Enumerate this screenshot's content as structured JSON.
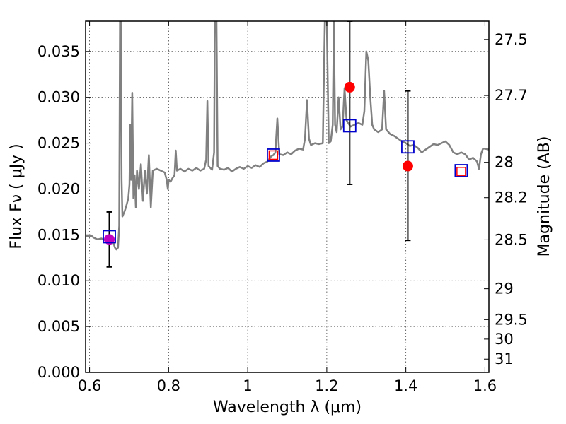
{
  "chart_data": {
    "type": "scatter",
    "xlabel": "Wavelength  λ (μm)",
    "ylabel": "Flux  Fν  ( μJy )",
    "y2label": "Magnitude (AB)",
    "xlim": [
      0.59,
      1.61
    ],
    "ylim": [
      0.0,
      0.0383
    ],
    "grid": true,
    "x_ticks": [
      {
        "value": 0.6,
        "label": "0.6"
      },
      {
        "value": 0.8,
        "label": "0.8"
      },
      {
        "value": 1.0,
        "label": "1"
      },
      {
        "value": 1.2,
        "label": "1.2"
      },
      {
        "value": 1.4,
        "label": "1.4"
      },
      {
        "value": 1.6,
        "label": "1.6"
      }
    ],
    "y_ticks": [
      {
        "value": 0.0,
        "label": "0.000"
      },
      {
        "value": 0.005,
        "label": "0.005"
      },
      {
        "value": 0.01,
        "label": "0.010"
      },
      {
        "value": 0.015,
        "label": "0.015"
      },
      {
        "value": 0.02,
        "label": "0.020"
      },
      {
        "value": 0.025,
        "label": "0.025"
      },
      {
        "value": 0.03,
        "label": "0.030"
      },
      {
        "value": 0.035,
        "label": "0.035"
      }
    ],
    "y2_ticks": [
      {
        "value": 27.5,
        "label": "27.5"
      },
      {
        "value": 27.7,
        "label": "27.7"
      },
      {
        "value": 28.0,
        "label": "28"
      },
      {
        "value": 28.2,
        "label": "28.2"
      },
      {
        "value": 28.5,
        "label": "28.5"
      },
      {
        "value": 29.0,
        "label": "29"
      },
      {
        "value": 29.5,
        "label": "29.5"
      },
      {
        "value": 30.0,
        "label": "30"
      },
      {
        "value": 31.0,
        "label": "31"
      }
    ],
    "colors": {
      "template": "#808080",
      "model": "#0000cc",
      "model_inner": "#ff0000",
      "observed": "#ff0000",
      "observed_first": "#c000c0",
      "errorbar": "#000000"
    },
    "template_spectrum": [
      [
        0.59,
        0.0149
      ],
      [
        0.605,
        0.0149
      ],
      [
        0.61,
        0.0147
      ],
      [
        0.62,
        0.0145
      ],
      [
        0.63,
        0.0146
      ],
      [
        0.64,
        0.0144
      ],
      [
        0.65,
        0.0143
      ],
      [
        0.66,
        0.0142
      ],
      [
        0.664,
        0.0136
      ],
      [
        0.668,
        0.0134
      ],
      [
        0.672,
        0.0136
      ],
      [
        0.675,
        0.016
      ],
      [
        0.677,
        0.0383
      ],
      [
        0.679,
        0.0383
      ],
      [
        0.681,
        0.021
      ],
      [
        0.683,
        0.017
      ],
      [
        0.688,
        0.0175
      ],
      [
        0.692,
        0.018
      ],
      [
        0.698,
        0.019
      ],
      [
        0.701,
        0.0205
      ],
      [
        0.703,
        0.027
      ],
      [
        0.705,
        0.021
      ],
      [
        0.708,
        0.0305
      ],
      [
        0.711,
        0.019
      ],
      [
        0.714,
        0.0215
      ],
      [
        0.717,
        0.018
      ],
      [
        0.72,
        0.022
      ],
      [
        0.725,
        0.02
      ],
      [
        0.73,
        0.0227
      ],
      [
        0.735,
        0.0187
      ],
      [
        0.74,
        0.022
      ],
      [
        0.745,
        0.0195
      ],
      [
        0.75,
        0.0237
      ],
      [
        0.755,
        0.018
      ],
      [
        0.76,
        0.022
      ],
      [
        0.77,
        0.0222
      ],
      [
        0.78,
        0.022
      ],
      [
        0.79,
        0.0218
      ],
      [
        0.795,
        0.021
      ],
      [
        0.798,
        0.02
      ],
      [
        0.8,
        0.021
      ],
      [
        0.805,
        0.0208
      ],
      [
        0.81,
        0.0212
      ],
      [
        0.815,
        0.0215
      ],
      [
        0.818,
        0.0242
      ],
      [
        0.821,
        0.022
      ],
      [
        0.83,
        0.0222
      ],
      [
        0.84,
        0.0219
      ],
      [
        0.85,
        0.0222
      ],
      [
        0.86,
        0.022
      ],
      [
        0.87,
        0.0223
      ],
      [
        0.88,
        0.022
      ],
      [
        0.89,
        0.0222
      ],
      [
        0.895,
        0.0232
      ],
      [
        0.898,
        0.0296
      ],
      [
        0.901,
        0.0225
      ],
      [
        0.91,
        0.0221
      ],
      [
        0.915,
        0.024
      ],
      [
        0.917,
        0.0383
      ],
      [
        0.921,
        0.0383
      ],
      [
        0.924,
        0.0225
      ],
      [
        0.93,
        0.0222
      ],
      [
        0.94,
        0.0221
      ],
      [
        0.95,
        0.0223
      ],
      [
        0.96,
        0.0219
      ],
      [
        0.97,
        0.0222
      ],
      [
        0.98,
        0.0224
      ],
      [
        0.99,
        0.0222
      ],
      [
        1.0,
        0.0225
      ],
      [
        1.01,
        0.0223
      ],
      [
        1.02,
        0.0226
      ],
      [
        1.03,
        0.0224
      ],
      [
        1.04,
        0.0228
      ],
      [
        1.05,
        0.023
      ],
      [
        1.06,
        0.0236
      ],
      [
        1.065,
        0.0237
      ],
      [
        1.07,
        0.024
      ],
      [
        1.075,
        0.0277
      ],
      [
        1.08,
        0.0238
      ],
      [
        1.09,
        0.0237
      ],
      [
        1.1,
        0.024
      ],
      [
        1.11,
        0.0238
      ],
      [
        1.12,
        0.0242
      ],
      [
        1.13,
        0.0244
      ],
      [
        1.14,
        0.0243
      ],
      [
        1.145,
        0.0255
      ],
      [
        1.15,
        0.0297
      ],
      [
        1.155,
        0.0255
      ],
      [
        1.16,
        0.0248
      ],
      [
        1.17,
        0.025
      ],
      [
        1.18,
        0.0249
      ],
      [
        1.19,
        0.025
      ],
      [
        1.195,
        0.0383
      ],
      [
        1.2,
        0.0383
      ],
      [
        1.205,
        0.025
      ],
      [
        1.21,
        0.0252
      ],
      [
        1.215,
        0.027
      ],
      [
        1.218,
        0.0383
      ],
      [
        1.221,
        0.027
      ],
      [
        1.225,
        0.0262
      ],
      [
        1.23,
        0.03
      ],
      [
        1.235,
        0.0265
      ],
      [
        1.24,
        0.0268
      ],
      [
        1.245,
        0.031
      ],
      [
        1.25,
        0.0275
      ],
      [
        1.26,
        0.0268
      ],
      [
        1.27,
        0.027
      ],
      [
        1.28,
        0.0272
      ],
      [
        1.29,
        0.027
      ],
      [
        1.295,
        0.0285
      ],
      [
        1.3,
        0.035
      ],
      [
        1.305,
        0.034
      ],
      [
        1.31,
        0.03
      ],
      [
        1.315,
        0.027
      ],
      [
        1.32,
        0.0265
      ],
      [
        1.33,
        0.0262
      ],
      [
        1.34,
        0.0265
      ],
      [
        1.345,
        0.0307
      ],
      [
        1.35,
        0.0265
      ],
      [
        1.36,
        0.026
      ],
      [
        1.37,
        0.0258
      ],
      [
        1.38,
        0.0255
      ],
      [
        1.39,
        0.0252
      ],
      [
        1.4,
        0.025
      ],
      [
        1.41,
        0.0247
      ],
      [
        1.42,
        0.0248
      ],
      [
        1.43,
        0.0245
      ],
      [
        1.44,
        0.024
      ],
      [
        1.45,
        0.0243
      ],
      [
        1.46,
        0.0246
      ],
      [
        1.47,
        0.0249
      ],
      [
        1.48,
        0.0248
      ],
      [
        1.49,
        0.025
      ],
      [
        1.5,
        0.0252
      ],
      [
        1.51,
        0.0248
      ],
      [
        1.52,
        0.024
      ],
      [
        1.53,
        0.0238
      ],
      [
        1.54,
        0.024
      ],
      [
        1.55,
        0.0238
      ],
      [
        1.56,
        0.0232
      ],
      [
        1.57,
        0.0234
      ],
      [
        1.58,
        0.023
      ],
      [
        1.585,
        0.0222
      ],
      [
        1.59,
        0.0238
      ],
      [
        1.595,
        0.0244
      ],
      [
        1.6,
        0.0244
      ],
      [
        1.61,
        0.0243
      ]
    ],
    "model_points": [
      {
        "x": 0.65,
        "y": 0.0148
      },
      {
        "x": 1.065,
        "y": 0.0237
      },
      {
        "x": 1.258,
        "y": 0.0269
      },
      {
        "x": 1.405,
        "y": 0.0246
      },
      {
        "x": 1.54,
        "y": 0.022
      }
    ],
    "observed_points": [
      {
        "x": 0.65,
        "y": 0.0145,
        "yerr_low": 0.0115,
        "yerr_high": 0.0175
      },
      {
        "x": 1.065,
        "y": 0.0237
      },
      {
        "x": 1.258,
        "y": 0.0311,
        "yerr_low": 0.0205,
        "yerr_high": 0.0383
      },
      {
        "x": 1.405,
        "y": 0.0225,
        "yerr_low": 0.0144,
        "yerr_high": 0.0307
      },
      {
        "x": 1.54,
        "y": 0.0219
      }
    ]
  }
}
